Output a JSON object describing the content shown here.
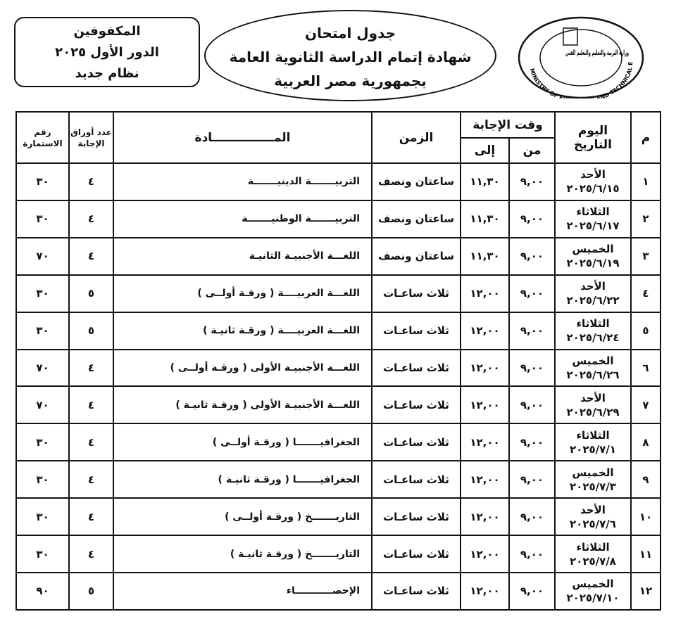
{
  "header": {
    "title": "جدول امتحان",
    "line2": "شهادة إتمام الدراسة الثانوية العامة",
    "line3": "بجمهورية مصر العربية"
  },
  "side_box": {
    "line1": "المكفوفين",
    "line2": "الدور الأول ٢٠٢٥",
    "line3": "نظام جديد"
  },
  "logo": {
    "arabic": "وزارة التربية والتعليم والتعليم الفني",
    "english": "MINISTRY OF EDUCATION AND TECHNICAL EDUCATION"
  },
  "table": {
    "columns": {
      "num": "م",
      "day": "اليوم",
      "date": "التاريخ",
      "answer_time": "وقت الإجابة",
      "from": "من",
      "to": "إلى",
      "duration": "الزمن",
      "subject": "المـــــــــــــــادة",
      "sheets": "عدد أوراق الإجابة",
      "form": "رقم الاستمارة"
    },
    "rows": [
      [
        "١",
        "الأحد",
        "٢٠٢٥/٦/١٥",
        "٩,٠٠",
        "١١,٣٠",
        "ساعتان ونصف",
        "التربيـــــــة الدينيـــــــة",
        "٤",
        "٣٠"
      ],
      [
        "٢",
        "الثلاثاء",
        "٢٠٢٥/٦/١٧",
        "٩,٠٠",
        "١١,٣٠",
        "ساعتان ونصف",
        "التربيـــــــة الوطنيـــــــة",
        "٤",
        "٣٠"
      ],
      [
        "٣",
        "الخميس",
        "٢٠٢٥/٦/١٩",
        "٩,٠٠",
        "١١,٣٠",
        "ساعتان ونصف",
        "اللغـــة الأجنبيـة الثانيـة",
        "٤",
        "٧٠"
      ],
      [
        "٤",
        "الأحد",
        "٢٠٢٥/٦/٢٢",
        "٩,٠٠",
        "١٢,٠٠",
        "ثلاث ساعـات",
        "اللغـــة العربيــــة ( ورقـة أولــى )",
        "٥",
        "٣٠"
      ],
      [
        "٥",
        "الثلاثاء",
        "٢٠٢٥/٦/٢٤",
        "٩,٠٠",
        "١٢,٠٠",
        "ثلاث ساعـات",
        "اللغـــة العربيــــة ( ورقـة ثانيـة )",
        "٥",
        "٣٠"
      ],
      [
        "٦",
        "الخميس",
        "٢٠٢٥/٦/٢٦",
        "٩,٠٠",
        "١٢,٠٠",
        "ثلاث ساعـات",
        "اللغـــة الأجنبيـة الأولى ( ورقـة أولــى )",
        "٤",
        "٧٠"
      ],
      [
        "٧",
        "الأحد",
        "٢٠٢٥/٦/٢٩",
        "٩,٠٠",
        "١٢,٠٠",
        "ثلاث ساعـات",
        "اللغـــة الأجنبيـة الأولى ( ورقـة ثانيـة )",
        "٤",
        "٧٠"
      ],
      [
        "٨",
        "الثلاثاء",
        "٢٠٢٥/٧/١",
        "٩,٠٠",
        "١٢,٠٠",
        "ثلاث ساعـات",
        "الجغرافيـــــــا ( ورقـة أولــى )",
        "٤",
        "٣٠"
      ],
      [
        "٩",
        "الخميس",
        "٢٠٢٥/٧/٣",
        "٩,٠٠",
        "١٢,٠٠",
        "ثلاث ساعـات",
        "الجغرافيـــــــا ( ورقـة ثانيـة )",
        "٤",
        "٣٠"
      ],
      [
        "١٠",
        "الأحد",
        "٢٠٢٥/٧/٦",
        "٩,٠٠",
        "١٢,٠٠",
        "ثلاث ساعـات",
        "التاريـــــــخ ( ورقـة أولــى )",
        "٤",
        "٣٠"
      ],
      [
        "١١",
        "الثلاثاء",
        "٢٠٢٥/٧/٨",
        "٩,٠٠",
        "١٢,٠٠",
        "ثلاث ساعـات",
        "التاريـــــــخ ( ورقـة ثانيـة )",
        "٤",
        "٣٠"
      ],
      [
        "١٢",
        "الخميس",
        "٢٠٢٥/٧/١٠",
        "٩,٠٠",
        "١٢,٠٠",
        "ثلاث ساعـات",
        "الإحصـــــــــــاء",
        "٥",
        "٩٠"
      ]
    ]
  }
}
